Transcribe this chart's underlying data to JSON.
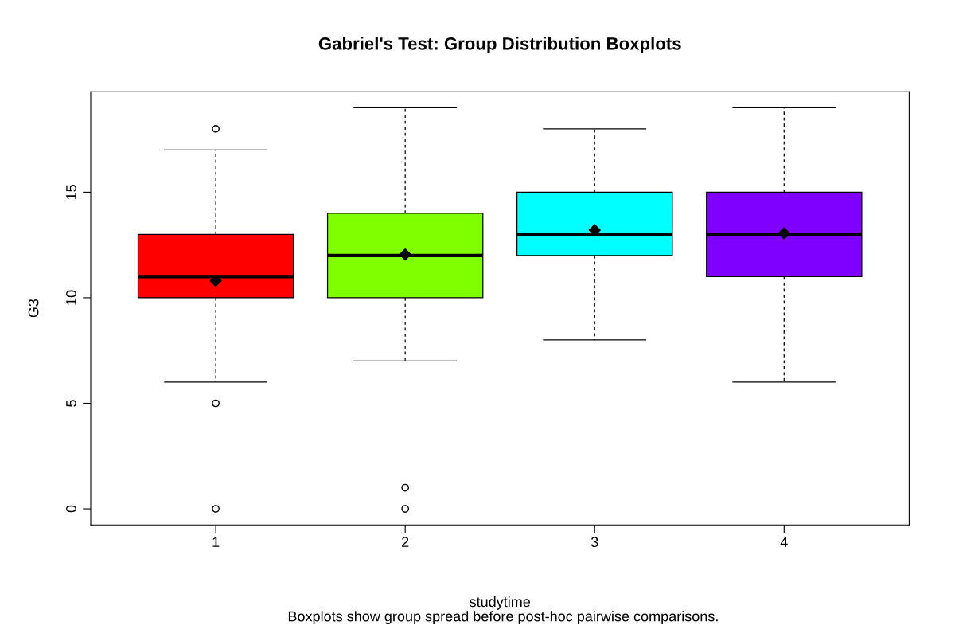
{
  "chart_data": {
    "type": "box",
    "title": "Gabriel's Test: Group Distribution Boxplots",
    "xlabel": "studytime",
    "ylabel": "G3",
    "categories": [
      "1",
      "2",
      "3",
      "4"
    ],
    "colors": [
      "#ff0000",
      "#80ff00",
      "#00ffff",
      "#8000ff"
    ],
    "boxes": [
      {
        "low": 6,
        "q1": 10,
        "median": 11,
        "q3": 13,
        "high": 17,
        "mean": 10.8,
        "outliers": [
          18,
          5,
          0
        ]
      },
      {
        "low": 7,
        "q1": 10,
        "median": 12,
        "q3": 14,
        "high": 19,
        "mean": 12.05,
        "outliers": [
          1,
          0
        ]
      },
      {
        "low": 8,
        "q1": 12,
        "median": 13,
        "q3": 15,
        "high": 18,
        "mean": 13.2
      },
      {
        "low": 6,
        "q1": 11,
        "median": 13,
        "q3": 15,
        "high": 19,
        "mean": 13.05
      }
    ],
    "ylim": [
      -0.76,
      19.76
    ],
    "yticks": [
      0,
      5,
      10,
      15
    ],
    "grid": false,
    "legend": false,
    "annotations": [
      "Boxplots show group spread before post-hoc pairwise comparisons."
    ]
  }
}
